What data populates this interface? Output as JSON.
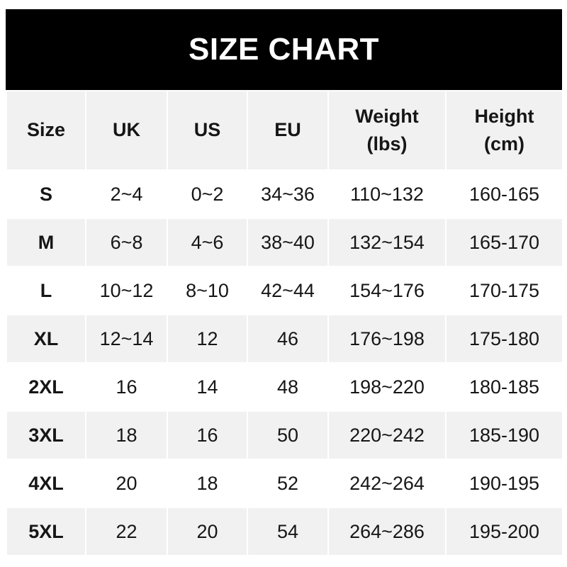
{
  "title": "SIZE CHART",
  "headers": [
    "Size",
    "UK",
    "US",
    "EU",
    "Weight\n(lbs)",
    "Height\n(cm)"
  ],
  "header_lines": [
    [
      "Size"
    ],
    [
      "UK"
    ],
    [
      "US"
    ],
    [
      "EU"
    ],
    [
      "Weight",
      "(lbs)"
    ],
    [
      "Height",
      "(cm)"
    ]
  ],
  "rows": [
    [
      "S",
      "2~4",
      "0~2",
      "34~36",
      "110~132",
      "160-165"
    ],
    [
      "M",
      "6~8",
      "4~6",
      "38~40",
      "132~154",
      "165-170"
    ],
    [
      "L",
      "10~12",
      "8~10",
      "42~44",
      "154~176",
      "170-175"
    ],
    [
      "XL",
      "12~14",
      "12",
      "46",
      "176~198",
      "175-180"
    ],
    [
      "2XL",
      "16",
      "14",
      "48",
      "198~220",
      "180-185"
    ],
    [
      "3XL",
      "18",
      "16",
      "50",
      "220~242",
      "185-190"
    ],
    [
      "4XL",
      "20",
      "18",
      "52",
      "242~264",
      "190-195"
    ],
    [
      "5XL",
      "22",
      "20",
      "54",
      "264~286",
      "195-200"
    ]
  ],
  "colors": {
    "title_bg": "#000000",
    "title_text": "#ffffff",
    "stripe": "#f1f1f1",
    "text": "#161616"
  }
}
